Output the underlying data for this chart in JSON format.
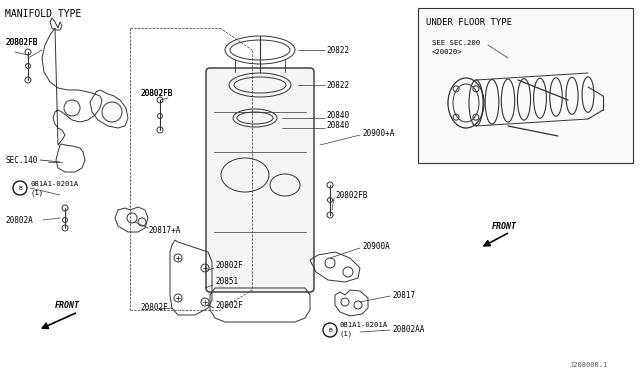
{
  "background_color": "#ffffff",
  "line_color": "#333333",
  "text_color": "#000000",
  "fig_width": 6.4,
  "fig_height": 3.72,
  "dpi": 100,
  "manifold_type_label": "MANIFOLD TYPE",
  "under_floor_label": "UNDER FLOOR TYPE",
  "see_sec_label": "SEE SEC.200",
  "see_sec2_label": "<20020>",
  "part_number_label": "J208000.1"
}
